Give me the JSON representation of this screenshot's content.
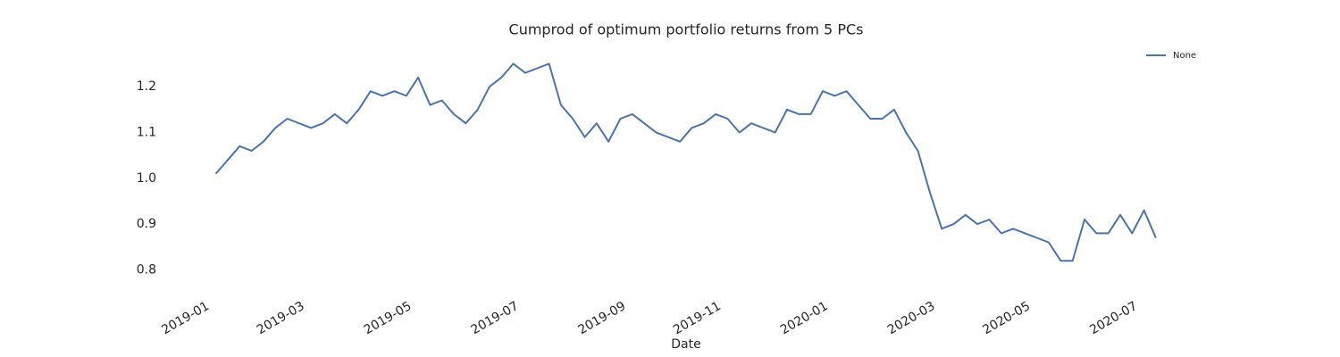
{
  "chart_data": {
    "type": "line",
    "title": "Cumprod of optimum portfolio returns from 5 PCs",
    "xlabel": "Date",
    "categories": [
      "2019-01",
      null,
      null,
      null,
      null,
      null,
      null,
      null,
      "2019-03",
      null,
      null,
      null,
      null,
      null,
      null,
      null,
      null,
      "2019-05",
      null,
      null,
      null,
      null,
      null,
      null,
      null,
      null,
      "2019-07",
      null,
      null,
      null,
      null,
      null,
      null,
      null,
      null,
      "2019-09",
      null,
      null,
      null,
      null,
      null,
      null,
      null,
      "2019-11",
      null,
      null,
      null,
      null,
      null,
      null,
      null,
      null,
      "2020-01",
      null,
      null,
      null,
      null,
      null,
      null,
      null,
      null,
      "2020-03",
      null,
      null,
      null,
      null,
      null,
      null,
      null,
      "2020-05",
      null,
      null,
      null,
      null,
      null,
      null,
      null,
      null,
      "2020-07",
      null,
      null,
      null
    ],
    "series": [
      {
        "name": "None",
        "color": "#4c72b0",
        "values": [
          null,
          null,
          1.01,
          1.04,
          1.07,
          1.06,
          1.08,
          1.11,
          1.13,
          1.12,
          1.11,
          1.12,
          1.14,
          1.12,
          1.15,
          1.19,
          1.18,
          1.19,
          1.18,
          1.22,
          1.16,
          1.17,
          1.14,
          1.12,
          1.15,
          1.2,
          1.22,
          1.25,
          1.23,
          1.24,
          1.25,
          1.16,
          1.13,
          1.09,
          1.12,
          1.08,
          1.13,
          1.14,
          1.12,
          1.1,
          1.09,
          1.08,
          1.11,
          1.12,
          1.14,
          1.13,
          1.1,
          1.12,
          1.11,
          1.1,
          1.15,
          1.14,
          1.14,
          1.19,
          1.18,
          1.19,
          1.16,
          1.13,
          1.13,
          1.15,
          1.1,
          1.06,
          0.97,
          0.89,
          0.9,
          0.92,
          0.9,
          0.91,
          0.88,
          0.89,
          0.88,
          0.87,
          0.86,
          0.82,
          0.82,
          0.91,
          0.88,
          0.88,
          0.92,
          0.88,
          0.93,
          0.87
        ]
      }
    ],
    "ylim": [
      0.76,
      1.28
    ],
    "yticks": [
      0.8,
      0.9,
      {
        "value": 1,
        "label": "1.0"
      },
      1.1,
      1.2
    ],
    "grid": false,
    "legend": "upper right"
  }
}
